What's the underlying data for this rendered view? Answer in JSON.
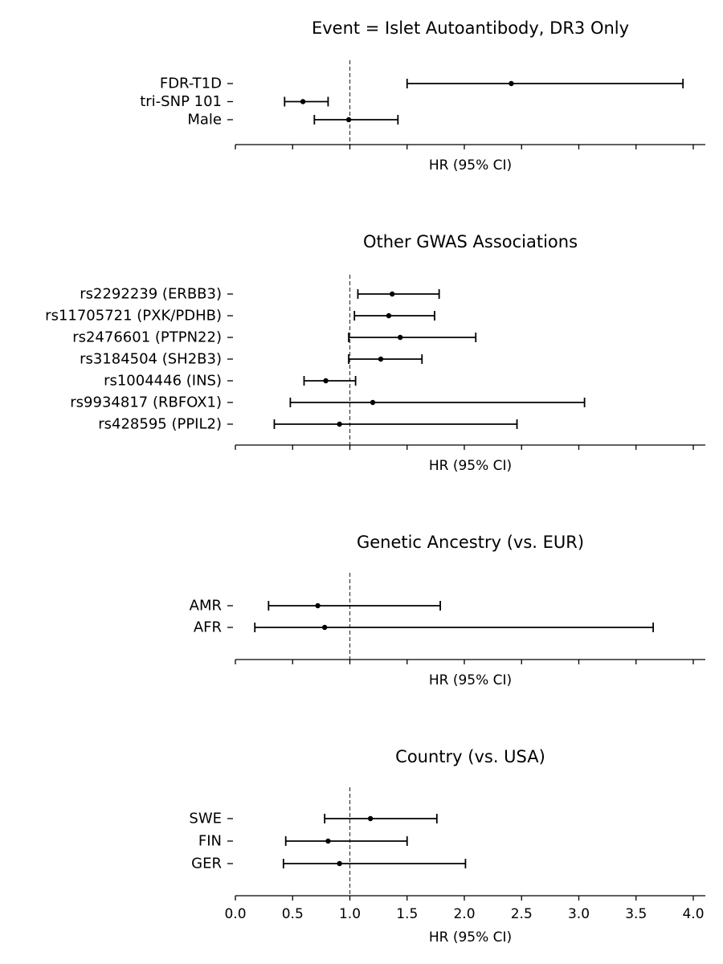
{
  "chart_data": [
    {
      "type": "forest",
      "title": "Event = Islet Autoantibody, DR3 Only",
      "xlabel": "HR (95% CI)",
      "xlim": [
        0.0,
        4.1
      ],
      "xticks": [
        0.0,
        0.5,
        1.0,
        1.5,
        2.0,
        2.5,
        3.0,
        3.5,
        4.0
      ],
      "show_tick_labels": false,
      "reference_line": 1.0,
      "rows": [
        {
          "label": "FDR-T1D",
          "hr": 2.41,
          "lower": 1.5,
          "upper": 3.91
        },
        {
          "label": "tri-SNP 101",
          "hr": 0.59,
          "lower": 0.43,
          "upper": 0.81
        },
        {
          "label": "Male",
          "hr": 0.99,
          "lower": 0.69,
          "upper": 1.42
        }
      ]
    },
    {
      "type": "forest",
      "title": "Other GWAS Associations",
      "xlabel": "HR (95% CI)",
      "xlim": [
        0.0,
        4.1
      ],
      "xticks": [
        0.0,
        0.5,
        1.0,
        1.5,
        2.0,
        2.5,
        3.0,
        3.5,
        4.0
      ],
      "show_tick_labels": false,
      "reference_line": 1.0,
      "rows": [
        {
          "label": "rs2292239 (ERBB3)",
          "hr": 1.37,
          "lower": 1.07,
          "upper": 1.78
        },
        {
          "label": "rs11705721 (PXK/PDHB)",
          "hr": 1.34,
          "lower": 1.04,
          "upper": 1.74
        },
        {
          "label": "rs2476601 (PTPN22)",
          "hr": 1.44,
          "lower": 0.99,
          "upper": 2.1
        },
        {
          "label": "rs3184504 (SH2B3)",
          "hr": 1.27,
          "lower": 0.99,
          "upper": 1.63
        },
        {
          "label": "rs1004446 (INS)",
          "hr": 0.79,
          "lower": 0.6,
          "upper": 1.05
        },
        {
          "label": "rs9934817 (RBFOX1)",
          "hr": 1.2,
          "lower": 0.48,
          "upper": 3.05
        },
        {
          "label": "rs428595 (PPIL2)",
          "hr": 0.91,
          "lower": 0.34,
          "upper": 2.46
        }
      ]
    },
    {
      "type": "forest",
      "title": "Genetic Ancestry (vs. EUR)",
      "xlabel": "HR (95% CI)",
      "xlim": [
        0.0,
        4.1
      ],
      "xticks": [
        0.0,
        0.5,
        1.0,
        1.5,
        2.0,
        2.5,
        3.0,
        3.5,
        4.0
      ],
      "show_tick_labels": false,
      "reference_line": 1.0,
      "rows": [
        {
          "label": "AMR",
          "hr": 0.72,
          "lower": 0.29,
          "upper": 1.79
        },
        {
          "label": "AFR",
          "hr": 0.78,
          "lower": 0.17,
          "upper": 3.65
        }
      ]
    },
    {
      "type": "forest",
      "title": "Country (vs. USA)",
      "xlabel": "HR (95% CI)",
      "xlim": [
        0.0,
        4.1
      ],
      "xticks": [
        0.0,
        0.5,
        1.0,
        1.5,
        2.0,
        2.5,
        3.0,
        3.5,
        4.0
      ],
      "xtick_labels": [
        "0.0",
        "0.5",
        "1.0",
        "1.5",
        "2.0",
        "2.5",
        "3.0",
        "3.5",
        "4.0"
      ],
      "show_tick_labels": true,
      "reference_line": 1.0,
      "rows": [
        {
          "label": "SWE",
          "hr": 1.18,
          "lower": 0.78,
          "upper": 1.76
        },
        {
          "label": "FIN",
          "hr": 0.81,
          "lower": 0.44,
          "upper": 1.5
        },
        {
          "label": "GER",
          "hr": 0.91,
          "lower": 0.42,
          "upper": 2.01
        }
      ]
    }
  ]
}
